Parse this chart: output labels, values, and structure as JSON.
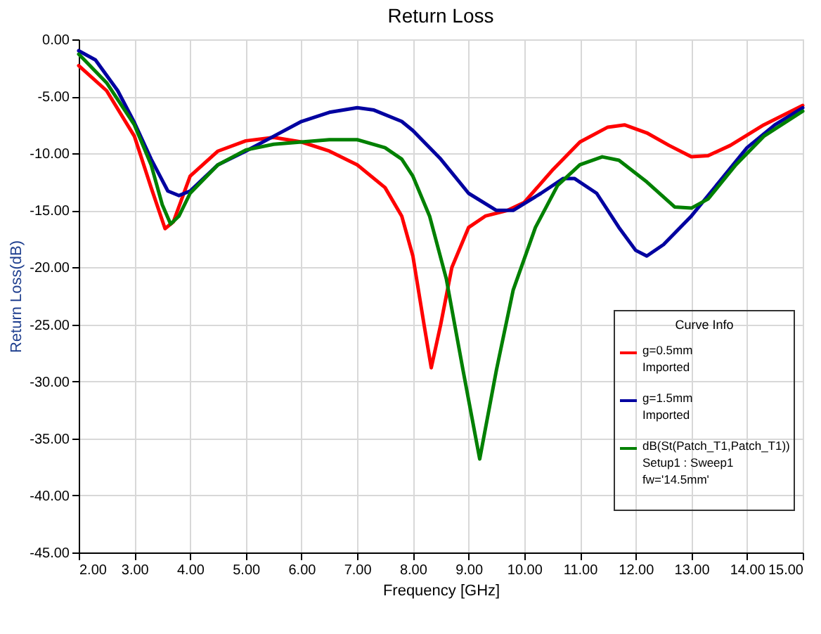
{
  "chart_data": {
    "type": "line",
    "title": "Return Loss",
    "xlabel": "Frequency [GHz]",
    "ylabel": "Return Loss(dB)",
    "legend_title": "Curve Info",
    "legend": "bottom right",
    "grid": true,
    "line_style": "solid",
    "marker": "none",
    "xlim": [
      2,
      15
    ],
    "ylim": [
      -45,
      0
    ],
    "xticks": [
      {
        "value": 2,
        "label": "2.00"
      },
      {
        "value": 3,
        "label": "3.00"
      },
      {
        "value": 4,
        "label": "4.00"
      },
      {
        "value": 5,
        "label": "5.00"
      },
      {
        "value": 6,
        "label": "6.00"
      },
      {
        "value": 7,
        "label": "7.00"
      },
      {
        "value": 8,
        "label": "8.00"
      },
      {
        "value": 9,
        "label": "9.00"
      },
      {
        "value": 10,
        "label": "10.00"
      },
      {
        "value": 11,
        "label": "11.00"
      },
      {
        "value": 12,
        "label": "12.00"
      },
      {
        "value": 13,
        "label": "13.00"
      },
      {
        "value": 14,
        "label": "14.00"
      },
      {
        "value": 15,
        "label": "15.00"
      }
    ],
    "yticks": [
      {
        "value": 0,
        "label": "0.00"
      },
      {
        "value": -5,
        "label": "-5.00"
      },
      {
        "value": -10,
        "label": "-10.00"
      },
      {
        "value": -15,
        "label": "-15.00"
      },
      {
        "value": -20,
        "label": "-20.00"
      },
      {
        "value": -25,
        "label": "-25.00"
      },
      {
        "value": -30,
        "label": "-30.00"
      },
      {
        "value": -35,
        "label": "-35.00"
      },
      {
        "value": -40,
        "label": "-40.00"
      },
      {
        "value": -45,
        "label": "-45.00"
      }
    ],
    "series": [
      {
        "name": "g=0.5mm\nImported",
        "color": "#ff0000",
        "x": [
          2,
          2.5,
          3,
          3.3,
          3.55,
          3.7,
          4,
          4.5,
          5,
          5.5,
          6,
          6.5,
          7,
          7.5,
          7.8,
          8,
          8.2,
          8.33,
          8.5,
          8.7,
          9,
          9.3,
          9.7,
          10,
          10.5,
          11,
          11.5,
          11.8,
          12.2,
          12.6,
          13,
          13.3,
          13.7,
          14.3,
          15
        ],
        "values": [
          -2.3,
          -4.5,
          -8.5,
          -13,
          -16.6,
          -16,
          -12,
          -9.8,
          -8.9,
          -8.6,
          -9,
          -9.8,
          -11,
          -13,
          -15.5,
          -19,
          -25,
          -28.8,
          -25,
          -20,
          -16.5,
          -15.5,
          -15,
          -14.3,
          -11.5,
          -9,
          -7.7,
          -7.5,
          -8.2,
          -9.3,
          -10.3,
          -10.2,
          -9.3,
          -7.5,
          -5.8
        ]
      },
      {
        "name": "g=1.5mm\nImported",
        "color": "#0000a0",
        "x": [
          2,
          2.3,
          2.7,
          3,
          3.3,
          3.6,
          3.8,
          4,
          4.5,
          5,
          5.5,
          6,
          6.5,
          7,
          7.3,
          7.8,
          8,
          8.5,
          9,
          9.5,
          9.8,
          10.3,
          10.7,
          10.9,
          11.3,
          11.7,
          12,
          12.2,
          12.5,
          13,
          13.5,
          14,
          14.5,
          15
        ],
        "values": [
          -1,
          -1.8,
          -4.5,
          -7.3,
          -10.5,
          -13.3,
          -13.7,
          -13.3,
          -11,
          -9.8,
          -8.5,
          -7.2,
          -6.4,
          -6,
          -6.2,
          -7.2,
          -8,
          -10.5,
          -13.5,
          -15,
          -15,
          -13.5,
          -12.2,
          -12.2,
          -13.5,
          -16.5,
          -18.5,
          -19,
          -18,
          -15.5,
          -12.5,
          -9.5,
          -7.5,
          -6
        ]
      },
      {
        "name": "dB(St(Patch_T1,Patch_T1))\nSetup1 : Sweep1\nfw='14.5mm'",
        "color": "#008000",
        "x": [
          2,
          2.5,
          3,
          3.3,
          3.5,
          3.65,
          3.8,
          4,
          4.5,
          5,
          5.5,
          6,
          6.5,
          7,
          7.5,
          7.8,
          8,
          8.3,
          8.6,
          8.9,
          9.2,
          9.5,
          9.8,
          10.2,
          10.6,
          11,
          11.4,
          11.7,
          12.2,
          12.7,
          13,
          13.3,
          13.8,
          14.3,
          15
        ],
        "values": [
          -1.3,
          -3.8,
          -7.5,
          -11,
          -14.5,
          -16.2,
          -15.5,
          -13.5,
          -11,
          -9.7,
          -9.2,
          -9,
          -8.8,
          -8.8,
          -9.5,
          -10.5,
          -12,
          -15.5,
          -21,
          -29,
          -36.8,
          -29,
          -22,
          -16.5,
          -12.8,
          -11,
          -10.3,
          -10.6,
          -12.5,
          -14.7,
          -14.8,
          -14,
          -11,
          -8.5,
          -6.3
        ]
      }
    ]
  }
}
